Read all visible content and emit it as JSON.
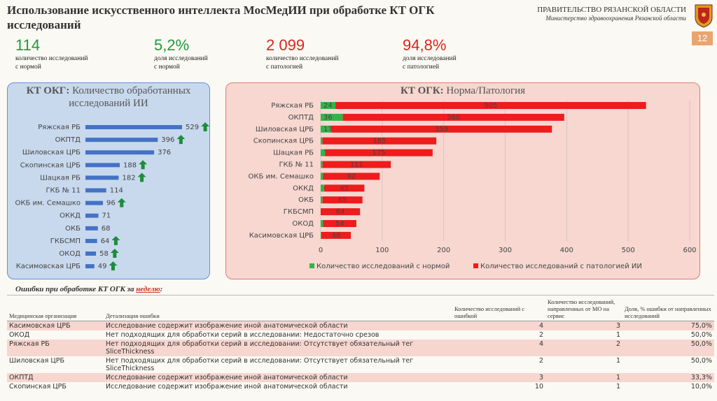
{
  "header": {
    "title": "Использование искусственного интеллекта МосМедИИ при обработке КТ ОГК исследований",
    "org": "ПРАВИТЕЛЬСТВО РЯЗАНСКОЙ ОБЛАСТИ",
    "ministry": "Министерство здравоохранения Рязанской области",
    "page": "12"
  },
  "kpis": [
    {
      "value": "114",
      "label": [
        "количество исследований",
        "с нормой"
      ],
      "color": "#1f9a3c"
    },
    {
      "value": "5,2%",
      "label": [
        "доля исследований",
        "с нормой"
      ],
      "color": "#1f9a3c"
    },
    {
      "value": "2 099",
      "label": [
        "количество исследований",
        "с патологией"
      ],
      "color": "#d9261c"
    },
    {
      "value": "94,8%",
      "label": [
        "доля исследований",
        "с патологией"
      ],
      "color": "#d9261c"
    }
  ],
  "chart_data": [
    {
      "type": "bar",
      "orientation": "horizontal",
      "title_bold": "КТ ОКГ:",
      "title": "Количество обработанных исследований ИИ",
      "categories": [
        "Ряжская РБ",
        "ОКПТД",
        "Шиловская ЦРБ",
        "Скопинская ЦРБ",
        "Шацкая РБ",
        "ГКБ № 11",
        "ОКБ им. Семашко",
        "ОККД",
        "ОКБ",
        "ГКБСМП",
        "ОКОД",
        "Касимовская ЦРБ"
      ],
      "values": [
        529,
        396,
        376,
        188,
        182,
        114,
        96,
        71,
        68,
        64,
        58,
        49
      ],
      "color": "#4472c4",
      "up_arrow": [
        true,
        true,
        false,
        true,
        true,
        false,
        true,
        false,
        false,
        true,
        true,
        true
      ],
      "arrow_color": "#1e8c3a"
    },
    {
      "type": "stacked_bar",
      "orientation": "horizontal",
      "title_bold": "КТ ОГК:",
      "title": "Норма/Патология",
      "categories": [
        "Ряжская РБ",
        "ОКПТД",
        "Шиловская ЦРБ",
        "Скопинская ЦРБ",
        "Шацкая РБ",
        "ГКБ № 11",
        "ОКБ им. Семашко",
        "ОККД",
        "ОКБ",
        "ГКБСМП",
        "ОКОД",
        "Касимовская ЦРБ"
      ],
      "series": [
        {
          "name": "Количество исследований с нормой",
          "color": "#33b34a",
          "values": [
            24,
            36,
            17,
            3,
            7,
            3,
            4,
            6,
            3,
            0,
            4,
            1
          ]
        },
        {
          "name": "Количество исследований с патологией ИИ",
          "color": "#ee1c1c",
          "values": [
            505,
            360,
            359,
            185,
            175,
            111,
            92,
            65,
            65,
            64,
            54,
            48
          ]
        }
      ],
      "xlim": [
        0,
        600
      ],
      "xticks": [
        0,
        100,
        200,
        300,
        400,
        500,
        600
      ],
      "grid": true
    }
  ],
  "table": {
    "caption": [
      "Ошибки при обработке ",
      "КТ ОГК",
      " за ",
      "неделю",
      ":"
    ],
    "columns": [
      "Медицинская организация",
      "Детализация ошибки",
      "Количество исследований с ошибкой",
      "Количество исследований, направленных от МО на сервис",
      "Доля, % ошибки от направленных исследований"
    ],
    "rows": [
      [
        "Касимовская ЦРБ",
        "Исследование содержит изображение иной анатомической области",
        "4",
        "3",
        "75,0%"
      ],
      [
        "ОКОД",
        "Нет подходящих для обработки серий в исследовании: Недостаточно срезов",
        "2",
        "1",
        "50,0%"
      ],
      [
        "Ряжская РБ",
        "Нет подходящих для обработки серий в исследовании: Отсутствует обязательный тег SliceThickness",
        "4",
        "2",
        "50,0%"
      ],
      [
        "Шиловская ЦРБ",
        "Нет подходящих для обработки серий в исследовании: Отсутствует обязательный тег SliceThickness",
        "2",
        "1",
        "50,0%"
      ],
      [
        "ОКПТД",
        "Исследование содержит изображение иной анатомической области",
        "3",
        "1",
        "33,3%"
      ],
      [
        "Скопинская ЦРБ",
        "Исследование содержит изображение иной анатомической области",
        "10",
        "1",
        "10,0%"
      ]
    ]
  }
}
